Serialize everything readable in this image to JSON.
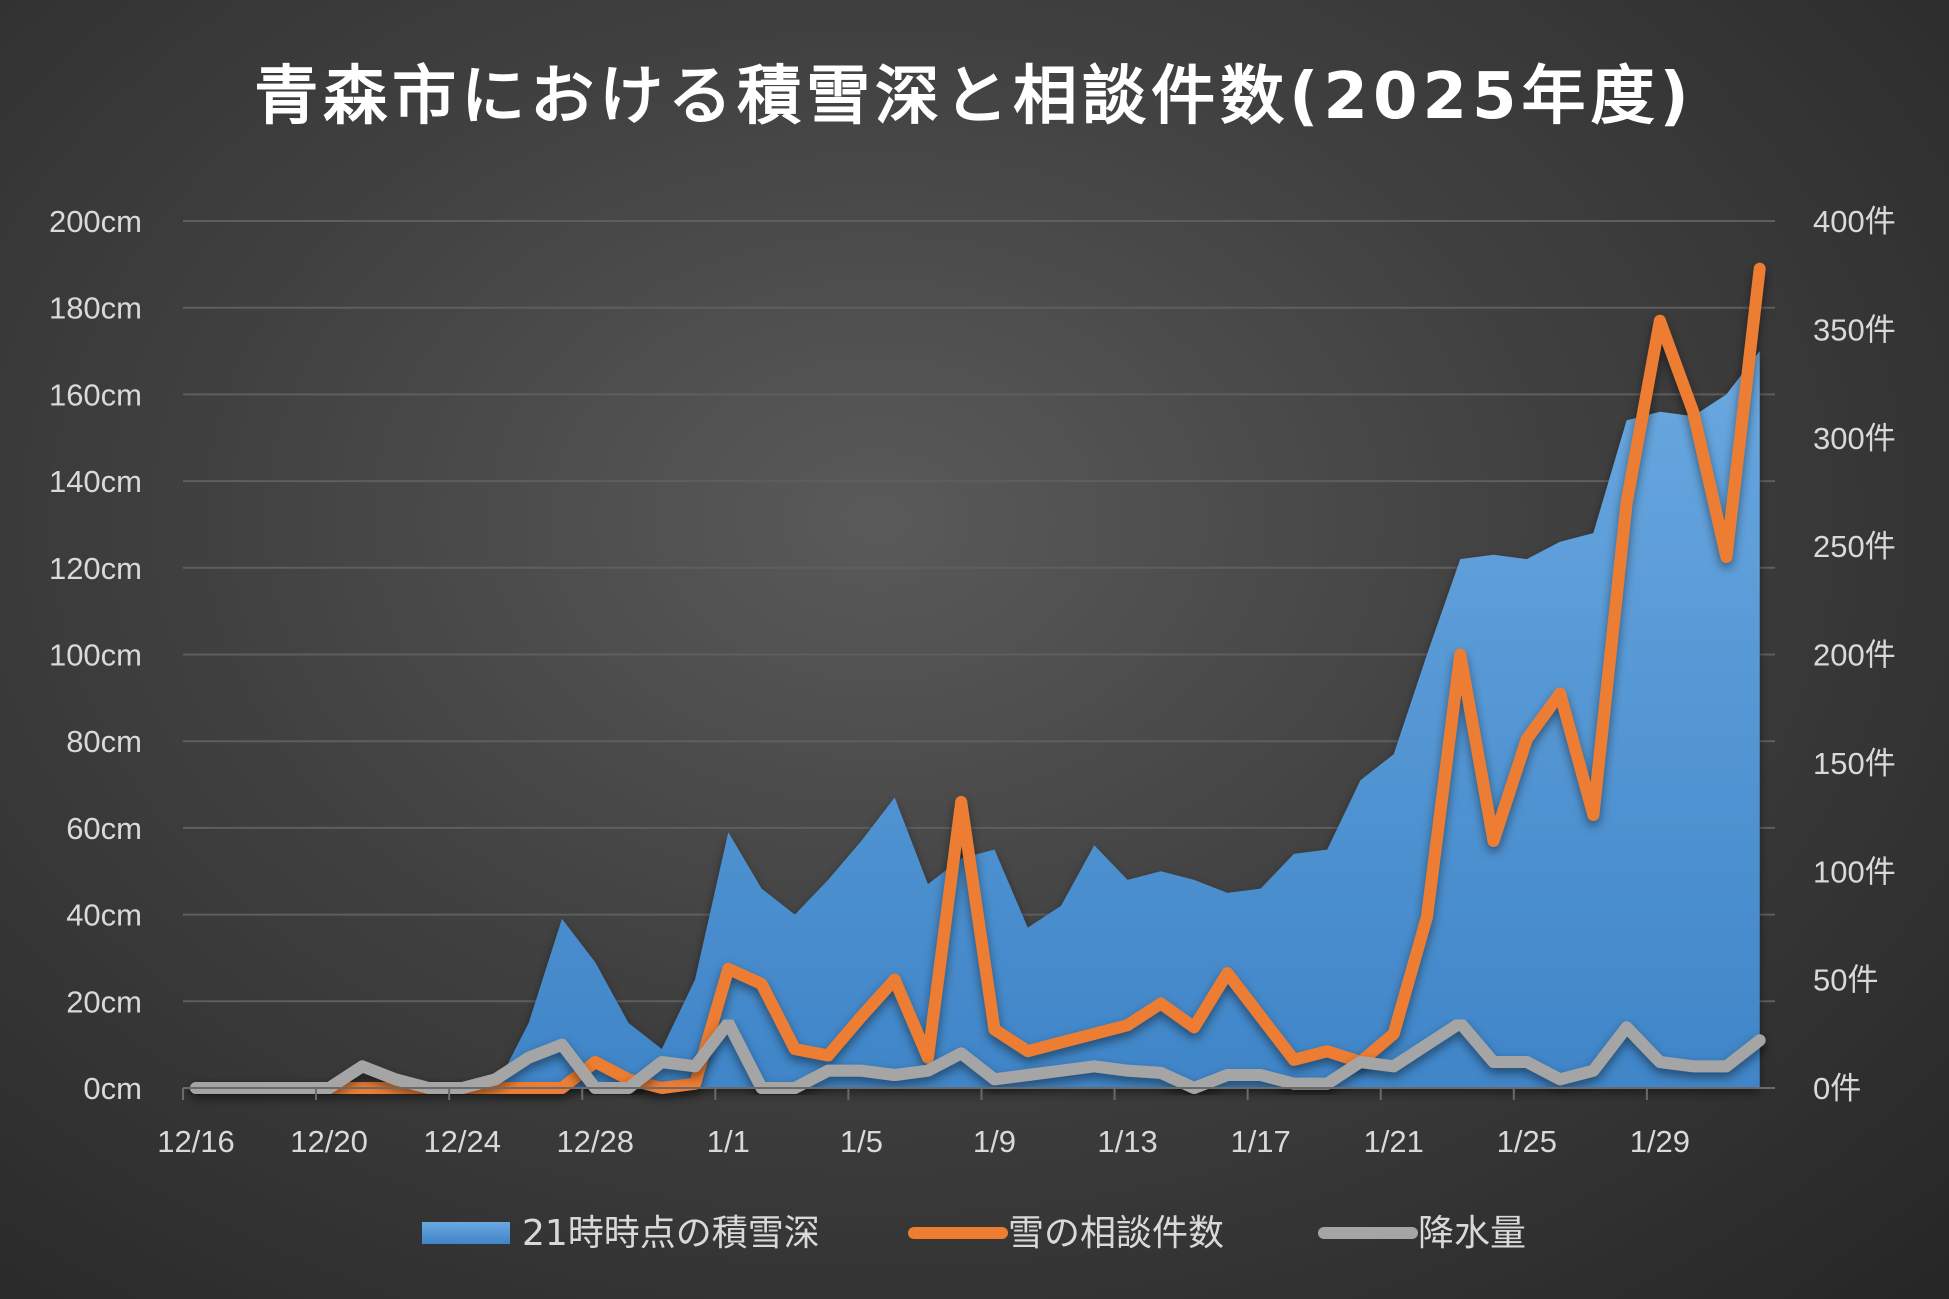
{
  "chart_data": {
    "type": "area+line",
    "title": "青森市における積雪深と相談件数(2025年度)",
    "x": [
      "12/16",
      "12/17",
      "12/18",
      "12/19",
      "12/20",
      "12/21",
      "12/22",
      "12/23",
      "12/24",
      "12/25",
      "12/26",
      "12/27",
      "12/28",
      "12/29",
      "12/30",
      "12/31",
      "1/1",
      "1/2",
      "1/3",
      "1/4",
      "1/5",
      "1/6",
      "1/7",
      "1/8",
      "1/9",
      "1/10",
      "1/11",
      "1/12",
      "1/13",
      "1/14",
      "1/15",
      "1/16",
      "1/17",
      "1/18",
      "1/19",
      "1/20",
      "1/21",
      "1/22",
      "1/23",
      "1/24",
      "1/25",
      "1/26",
      "1/27",
      "1/28",
      "1/29",
      "1/30",
      "1/31",
      "2/1"
    ],
    "x_tick_labels": [
      "12/16",
      "12/20",
      "12/24",
      "12/28",
      "1/1",
      "1/5",
      "1/9",
      "1/13",
      "1/17",
      "1/21",
      "1/25",
      "1/29"
    ],
    "y_left": {
      "ticks": [
        "0cm",
        "20cm",
        "40cm",
        "60cm",
        "80cm",
        "100cm",
        "120cm",
        "140cm",
        "160cm",
        "180cm",
        "200cm"
      ],
      "range": [
        0,
        200
      ]
    },
    "y_right": {
      "ticks": [
        "0件",
        "50件",
        "100件",
        "150件",
        "200件",
        "250件",
        "300件",
        "350件",
        "400件"
      ],
      "range": [
        0,
        400
      ]
    },
    "grid": true,
    "legend_position": "bottom",
    "series": [
      {
        "name": "21時時点の積雪深",
        "type": "area",
        "axis": "left",
        "color": "#4a90d6",
        "values": [
          0,
          0,
          0,
          0,
          0,
          0,
          0,
          0,
          0,
          0,
          15,
          39,
          29,
          15,
          9,
          25,
          59,
          46,
          40,
          48,
          57,
          67,
          47,
          53,
          55,
          37,
          42,
          56,
          48,
          50,
          48,
          45,
          46,
          54,
          55,
          71,
          77,
          100,
          122,
          123,
          122,
          126,
          128,
          154,
          156,
          155,
          160,
          170
        ]
      },
      {
        "name": "雪の相談件数",
        "type": "line",
        "axis": "right",
        "color": "#ed7d31",
        "values": [
          0,
          0,
          0,
          0,
          0,
          0,
          0,
          0,
          0,
          0,
          0,
          0,
          12,
          4,
          0,
          2,
          55,
          48,
          18,
          15,
          33,
          50,
          14,
          132,
          27,
          17,
          21,
          25,
          29,
          39,
          28,
          53,
          33,
          13,
          17,
          12,
          25,
          79,
          200,
          114,
          161,
          182,
          126,
          270,
          354,
          312,
          245,
          378
        ]
      },
      {
        "name": "降水量",
        "type": "line",
        "axis": "left",
        "color": "#a5a5a5",
        "values": [
          0,
          0,
          0,
          0,
          0,
          5,
          2,
          0,
          0,
          2,
          7,
          10,
          0,
          0,
          6,
          5,
          15,
          0,
          0,
          4,
          4,
          3,
          4,
          8,
          2,
          3,
          4,
          5,
          4,
          3.5,
          0,
          3,
          3,
          1,
          1,
          6,
          5,
          10,
          15,
          6,
          6,
          2,
          4,
          14,
          6,
          5,
          5,
          11
        ]
      }
    ]
  }
}
